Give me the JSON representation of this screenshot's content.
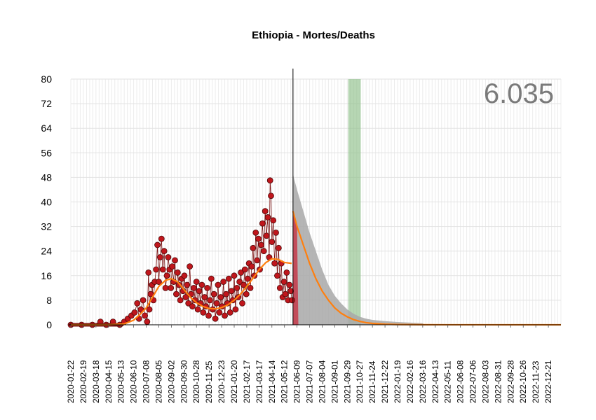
{
  "chart_data": {
    "type": "scatter",
    "title": "Ethiopia - Mortes/Deaths",
    "annotation": "6.035",
    "xlabel": "",
    "ylabel": "",
    "ylim": [
      0,
      80
    ],
    "yticks": [
      0,
      8,
      16,
      24,
      32,
      40,
      48,
      56,
      64,
      72,
      80
    ],
    "x_range": [
      "2020-01-22",
      "2023-01-18"
    ],
    "xtick_labels": [
      "2020-01-22",
      "2020-02-19",
      "2020-03-18",
      "2020-04-15",
      "2020-05-13",
      "2020-06-10",
      "2020-07-08",
      "2020-08-05",
      "2020-09-02",
      "2020-09-30",
      "2020-10-28",
      "2020-11-25",
      "2020-12-23",
      "2021-01-20",
      "2021-02-17",
      "2021-03-17",
      "2021-04-14",
      "2021-05-12",
      "2021-06-09",
      "2021-07-07",
      "2021-08-04",
      "2021-09-01",
      "2021-09-29",
      "2021-10-27",
      "2021-11-24",
      "2021-12-22",
      "2022-01-19",
      "2022-02-16",
      "2022-03-16",
      "2022-04-13",
      "2022-05-11",
      "2022-06-08",
      "2022-07-06",
      "2022-08-03",
      "2022-08-31",
      "2022-09-28",
      "2022-10-26",
      "2022-11-23",
      "2022-12-21"
    ],
    "grid": true,
    "forecast_start": "2021-05-31",
    "highlight_band": [
      "2021-10-01",
      "2021-10-29"
    ],
    "colors": {
      "points": "#c0161c",
      "point_edge": "#4a0a0a",
      "trend": "#ff7f0e",
      "forecast_band": "#a8a8a8",
      "red_area": "#c63a4a",
      "green_band": "#8fc08a",
      "annotation": "#7a7a7a"
    },
    "series": [
      {
        "type": "daily_points",
        "values": [
          [
            "2020-01-22",
            0
          ],
          [
            "2020-02-15",
            0
          ],
          [
            "2020-03-10",
            0
          ],
          [
            "2020-03-28",
            1
          ],
          [
            "2020-04-10",
            0
          ],
          [
            "2020-04-25",
            1
          ],
          [
            "2020-05-10",
            0
          ],
          [
            "2020-05-20",
            1
          ],
          [
            "2020-05-28",
            2
          ],
          [
            "2020-06-05",
            3
          ],
          [
            "2020-06-12",
            4
          ],
          [
            "2020-06-18",
            7
          ],
          [
            "2020-06-22",
            2
          ],
          [
            "2020-06-26",
            5
          ],
          [
            "2020-07-01",
            8
          ],
          [
            "2020-07-05",
            3
          ],
          [
            "2020-07-10",
            1
          ],
          [
            "2020-07-13",
            17
          ],
          [
            "2020-07-15",
            5
          ],
          [
            "2020-07-18",
            10
          ],
          [
            "2020-07-21",
            13
          ],
          [
            "2020-07-24",
            8
          ],
          [
            "2020-07-27",
            14
          ],
          [
            "2020-07-30",
            18
          ],
          [
            "2020-08-02",
            26
          ],
          [
            "2020-08-05",
            14
          ],
          [
            "2020-08-08",
            22
          ],
          [
            "2020-08-11",
            28
          ],
          [
            "2020-08-14",
            18
          ],
          [
            "2020-08-17",
            24
          ],
          [
            "2020-08-20",
            12
          ],
          [
            "2020-08-23",
            16
          ],
          [
            "2020-08-26",
            22
          ],
          [
            "2020-08-29",
            18
          ],
          [
            "2020-09-01",
            12
          ],
          [
            "2020-09-04",
            19
          ],
          [
            "2020-09-07",
            14
          ],
          [
            "2020-09-10",
            21
          ],
          [
            "2020-09-13",
            10
          ],
          [
            "2020-09-16",
            17
          ],
          [
            "2020-09-19",
            13
          ],
          [
            "2020-09-22",
            8
          ],
          [
            "2020-09-25",
            15
          ],
          [
            "2020-09-28",
            11
          ],
          [
            "2020-10-01",
            16
          ],
          [
            "2020-10-04",
            9
          ],
          [
            "2020-10-07",
            13
          ],
          [
            "2020-10-10",
            7
          ],
          [
            "2020-10-13",
            19
          ],
          [
            "2020-10-16",
            10
          ],
          [
            "2020-10-19",
            6
          ],
          [
            "2020-10-22",
            12
          ],
          [
            "2020-10-25",
            8
          ],
          [
            "2020-10-28",
            14
          ],
          [
            "2020-10-31",
            5
          ],
          [
            "2020-11-03",
            11
          ],
          [
            "2020-11-06",
            7
          ],
          [
            "2020-11-09",
            13
          ],
          [
            "2020-11-12",
            4
          ],
          [
            "2020-11-15",
            9
          ],
          [
            "2020-11-18",
            6
          ],
          [
            "2020-11-21",
            12
          ],
          [
            "2020-11-24",
            3
          ],
          [
            "2020-11-27",
            8
          ],
          [
            "2020-11-30",
            15
          ],
          [
            "2020-12-03",
            5
          ],
          [
            "2020-12-06",
            10
          ],
          [
            "2020-12-09",
            2
          ],
          [
            "2020-12-12",
            7
          ],
          [
            "2020-12-15",
            13
          ],
          [
            "2020-12-18",
            4
          ],
          [
            "2020-12-21",
            9
          ],
          [
            "2020-12-24",
            6
          ],
          [
            "2020-12-27",
            14
          ],
          [
            "2020-12-30",
            3
          ],
          [
            "2021-01-02",
            10
          ],
          [
            "2021-01-05",
            7
          ],
          [
            "2021-01-08",
            15
          ],
          [
            "2021-01-11",
            4
          ],
          [
            "2021-01-14",
            11
          ],
          [
            "2021-01-17",
            8
          ],
          [
            "2021-01-20",
            16
          ],
          [
            "2021-01-23",
            5
          ],
          [
            "2021-01-26",
            12
          ],
          [
            "2021-01-29",
            9
          ],
          [
            "2021-02-01",
            14
          ],
          [
            "2021-02-04",
            17
          ],
          [
            "2021-02-07",
            7
          ],
          [
            "2021-02-10",
            13
          ],
          [
            "2021-02-13",
            18
          ],
          [
            "2021-02-16",
            10
          ],
          [
            "2021-02-19",
            15
          ],
          [
            "2021-02-22",
            20
          ],
          [
            "2021-02-25",
            12
          ],
          [
            "2021-02-28",
            19
          ],
          [
            "2021-03-03",
            25
          ],
          [
            "2021-03-06",
            16
          ],
          [
            "2021-03-09",
            30
          ],
          [
            "2021-03-12",
            21
          ],
          [
            "2021-03-15",
            28
          ],
          [
            "2021-03-18",
            18
          ],
          [
            "2021-03-21",
            26
          ],
          [
            "2021-03-24",
            33
          ],
          [
            "2021-03-27",
            24
          ],
          [
            "2021-03-30",
            37
          ],
          [
            "2021-04-02",
            29
          ],
          [
            "2021-04-05",
            35
          ],
          [
            "2021-04-08",
            22
          ],
          [
            "2021-04-10",
            47
          ],
          [
            "2021-04-12",
            42
          ],
          [
            "2021-04-14",
            27
          ],
          [
            "2021-04-17",
            34
          ],
          [
            "2021-04-20",
            20
          ],
          [
            "2021-04-23",
            30
          ],
          [
            "2021-04-26",
            16
          ],
          [
            "2021-04-29",
            25
          ],
          [
            "2021-05-02",
            12
          ],
          [
            "2021-05-05",
            20
          ],
          [
            "2021-05-08",
            9
          ],
          [
            "2021-05-11",
            14
          ],
          [
            "2021-05-14",
            10
          ],
          [
            "2021-05-17",
            17
          ],
          [
            "2021-05-20",
            8
          ],
          [
            "2021-05-23",
            13
          ],
          [
            "2021-05-26",
            11
          ],
          [
            "2021-05-29",
            8
          ]
        ]
      },
      {
        "type": "trend_line",
        "values": [
          [
            "2020-01-22",
            0
          ],
          [
            "2020-04-15",
            0
          ],
          [
            "2020-05-20",
            0.3
          ],
          [
            "2020-06-10",
            1.5
          ],
          [
            "2020-06-25",
            3.5
          ],
          [
            "2020-07-08",
            5.5
          ],
          [
            "2020-07-22",
            9
          ],
          [
            "2020-08-05",
            12.5
          ],
          [
            "2020-08-20",
            14.5
          ],
          [
            "2020-09-02",
            15
          ],
          [
            "2020-09-16",
            14
          ],
          [
            "2020-09-30",
            11.5
          ],
          [
            "2020-10-14",
            9
          ],
          [
            "2020-10-28",
            7.2
          ],
          [
            "2020-11-11",
            6
          ],
          [
            "2020-11-25",
            5.3
          ],
          [
            "2020-12-09",
            5.2
          ],
          [
            "2020-12-23",
            5.6
          ],
          [
            "2021-01-06",
            6.5
          ],
          [
            "2021-01-20",
            8
          ],
          [
            "2021-02-03",
            10
          ],
          [
            "2021-02-17",
            12.5
          ],
          [
            "2021-03-03",
            15.2
          ],
          [
            "2021-03-17",
            18
          ],
          [
            "2021-03-31",
            20.2
          ],
          [
            "2021-04-14",
            21.5
          ],
          [
            "2021-04-28",
            21.3
          ],
          [
            "2021-05-12",
            20.3
          ],
          [
            "2021-05-28",
            20
          ]
        ]
      },
      {
        "type": "forecast_line",
        "values": [
          [
            "2021-05-31",
            37
          ],
          [
            "2021-06-09",
            32
          ],
          [
            "2021-06-23",
            26
          ],
          [
            "2021-07-07",
            20
          ],
          [
            "2021-07-21",
            15
          ],
          [
            "2021-08-04",
            11
          ],
          [
            "2021-08-18",
            8
          ],
          [
            "2021-09-01",
            5.5
          ],
          [
            "2021-09-15",
            3.8
          ],
          [
            "2021-09-29",
            2.6
          ],
          [
            "2021-10-13",
            1.7
          ],
          [
            "2021-10-27",
            1.1
          ],
          [
            "2021-11-10",
            0.7
          ],
          [
            "2021-11-24",
            0.45
          ],
          [
            "2021-12-22",
            0.2
          ],
          [
            "2022-01-19",
            0.08
          ],
          [
            "2022-03-16",
            0.02
          ],
          [
            "2023-01-18",
            0
          ]
        ]
      },
      {
        "type": "forecast_band_upper",
        "values": [
          [
            "2021-05-31",
            49
          ],
          [
            "2021-06-09",
            44
          ],
          [
            "2021-06-23",
            37
          ],
          [
            "2021-07-07",
            30
          ],
          [
            "2021-07-21",
            24
          ],
          [
            "2021-08-04",
            18
          ],
          [
            "2021-08-18",
            13
          ],
          [
            "2021-09-01",
            9.5
          ],
          [
            "2021-09-15",
            7
          ],
          [
            "2021-09-29",
            5
          ],
          [
            "2021-10-13",
            3.6
          ],
          [
            "2021-10-27",
            2.6
          ],
          [
            "2021-11-10",
            2
          ],
          [
            "2021-11-24",
            1.6
          ],
          [
            "2021-12-22",
            1.2
          ],
          [
            "2022-01-19",
            0.9
          ],
          [
            "2022-02-16",
            0.7
          ],
          [
            "2022-03-16",
            0.5
          ],
          [
            "2022-03-20",
            0
          ]
        ]
      },
      {
        "type": "red_area",
        "values": [
          [
            "2021-05-31",
            37
          ],
          [
            "2021-06-09",
            32
          ],
          [
            "2021-06-12",
            0
          ]
        ]
      }
    ]
  }
}
